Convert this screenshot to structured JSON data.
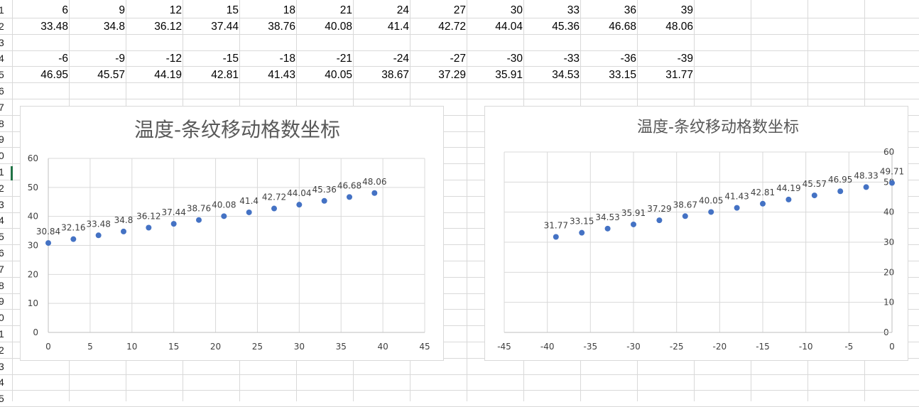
{
  "row_headers": [
    "1",
    "2",
    "3",
    "4",
    "5",
    "6",
    "7",
    "8",
    "9",
    "0",
    "1",
    "2",
    "3",
    "4",
    "5",
    "6",
    "7",
    "8",
    "9",
    "0",
    "1",
    "2",
    "3",
    "4",
    "5"
  ],
  "rows": {
    "r1": [
      6,
      9,
      12,
      15,
      18,
      21,
      24,
      27,
      30,
      33,
      36,
      39
    ],
    "r2": [
      33.48,
      34.8,
      36.12,
      37.44,
      38.76,
      40.08,
      41.4,
      42.72,
      44.04,
      45.36,
      46.68,
      48.06
    ],
    "r4": [
      -6,
      -9,
      -12,
      -15,
      -18,
      -21,
      -24,
      -27,
      -30,
      -33,
      -36,
      -39
    ],
    "r5": [
      46.95,
      45.57,
      44.19,
      42.81,
      41.43,
      40.05,
      38.67,
      37.29,
      35.91,
      34.53,
      33.15,
      31.77
    ]
  },
  "chart_data": [
    {
      "type": "scatter",
      "title": "温度-条纹移动格数坐标",
      "x": [
        0,
        3,
        6,
        9,
        12,
        15,
        18,
        21,
        24,
        27,
        30,
        33,
        36,
        39
      ],
      "y": [
        30.84,
        32.16,
        33.48,
        34.8,
        36.12,
        37.44,
        38.76,
        40.08,
        41.4,
        42.72,
        44.04,
        45.36,
        46.68,
        48.06
      ],
      "data_labels": [
        "30.84",
        "32.16",
        "33.48",
        "34.8",
        "36.12",
        "37.44",
        "38.76",
        "40.08",
        "41.4",
        "42.72",
        "44.04",
        "45.36",
        "46.68",
        "48.06"
      ],
      "xlim": [
        0,
        45
      ],
      "ylim": [
        0,
        60
      ],
      "xticks": [
        "0",
        "5",
        "10",
        "15",
        "20",
        "25",
        "30",
        "35",
        "40",
        "45"
      ],
      "yticks": [
        "0",
        "10",
        "20",
        "30",
        "40",
        "50",
        "60"
      ],
      "y_axis_side": "left",
      "grid": true,
      "marker_color": "#4472c4"
    },
    {
      "type": "scatter",
      "title": "温度-条纹移动格数坐标",
      "x": [
        -39,
        -36,
        -33,
        -30,
        -27,
        -24,
        -21,
        -18,
        -15,
        -12,
        -9,
        -6,
        -3,
        0
      ],
      "y": [
        31.77,
        33.15,
        34.53,
        35.91,
        37.29,
        38.67,
        40.05,
        41.43,
        42.81,
        44.19,
        45.57,
        46.95,
        48.33,
        49.71
      ],
      "data_labels": [
        "31.77",
        "33.15",
        "34.53",
        "35.91",
        "37.29",
        "38.67",
        "40.05",
        "41.43",
        "42.81",
        "44.19",
        "45.57",
        "46.95",
        "48.33",
        "49.71"
      ],
      "xlim": [
        -45,
        0
      ],
      "ylim": [
        0,
        60
      ],
      "xticks": [
        "-45",
        "-40",
        "-35",
        "-30",
        "-25",
        "-20",
        "-15",
        "-10",
        "-5",
        "0"
      ],
      "yticks": [
        "0",
        "10",
        "20",
        "30",
        "40",
        "50",
        "60"
      ],
      "y_axis_side": "right",
      "grid": true,
      "marker_color": "#4472c4"
    }
  ]
}
